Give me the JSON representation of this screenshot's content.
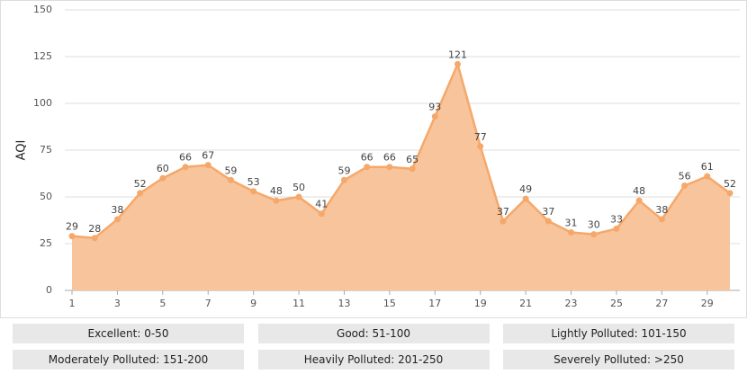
{
  "chart_data": {
    "type": "area",
    "y_label": "AQI",
    "x": [
      1,
      2,
      3,
      4,
      5,
      6,
      7,
      8,
      9,
      10,
      11,
      12,
      13,
      14,
      15,
      16,
      17,
      18,
      19,
      20,
      21,
      22,
      23,
      24,
      25,
      26,
      27,
      28,
      29,
      30
    ],
    "series": [
      {
        "color": "#f5a86a",
        "fill": "#f7c49c",
        "values": [
          29,
          28,
          38,
          52,
          60,
          66,
          67,
          59,
          53,
          48,
          50,
          41,
          59,
          66,
          66,
          65,
          93,
          121,
          77,
          37,
          49,
          37,
          31,
          30,
          33,
          48,
          38,
          56,
          61,
          52
        ]
      }
    ],
    "xlim": [
      1,
      30
    ],
    "xticks": [
      1,
      3,
      5,
      7,
      9,
      11,
      13,
      15,
      17,
      19,
      21,
      23,
      25,
      27,
      29
    ],
    "ylim": [
      0,
      150
    ],
    "yticks": [
      0,
      25,
      50,
      75,
      100,
      125,
      150
    ],
    "grid": true
  },
  "aqi_levels": [
    "Excellent: 0-50",
    "Good: 51-100",
    "Lightly Polluted: 101-150",
    "Moderately Polluted: 151-200",
    "Heavily Polluted: 201-250",
    "Severely Polluted: >250"
  ]
}
